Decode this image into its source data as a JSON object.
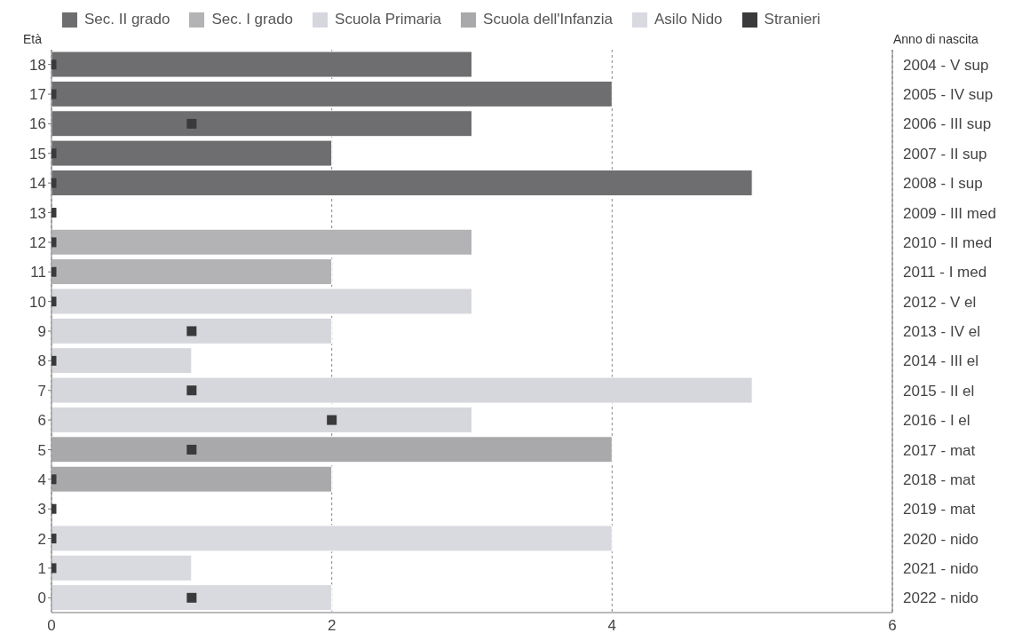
{
  "chart_data": {
    "type": "bar",
    "orientation": "horizontal",
    "stacked": true,
    "ylabel": "Età",
    "y2label": "Anno di nascita",
    "categories": [
      "18",
      "17",
      "16",
      "15",
      "14",
      "13",
      "12",
      "11",
      "10",
      "9",
      "8",
      "7",
      "6",
      "5",
      "4",
      "3",
      "2",
      "1",
      "0"
    ],
    "y2_categories": [
      "2004 - V sup",
      "2005 - IV sup",
      "2006 - III sup",
      "2007 - II sup",
      "2008 - I sup",
      "2009 - III med",
      "2010 - II med",
      "2011 - I med",
      "2012 - V el",
      "2013 - IV el",
      "2014 - III el",
      "2015 - II el",
      "2016 - I el",
      "2017 - mat",
      "2018 - mat",
      "2019 - mat",
      "2020 - nido",
      "2021 - nido",
      "2022 - nido"
    ],
    "series": [
      {
        "name": "Sec. II grado",
        "color": "#6e6e70",
        "values": [
          3,
          4,
          3,
          2,
          5,
          null,
          null,
          null,
          null,
          null,
          null,
          null,
          null,
          null,
          null,
          null,
          null,
          null,
          null
        ]
      },
      {
        "name": "Sec. I grado",
        "color": "#b3b3b6",
        "values": [
          null,
          null,
          null,
          null,
          null,
          null,
          3,
          2,
          null,
          null,
          null,
          null,
          null,
          null,
          null,
          null,
          null,
          null,
          null
        ]
      },
      {
        "name": "Scuola Primaria",
        "color": "#d6d7dc",
        "values": [
          null,
          null,
          null,
          null,
          null,
          null,
          null,
          null,
          3,
          2,
          1,
          5,
          3,
          null,
          null,
          null,
          null,
          null,
          null
        ]
      },
      {
        "name": "Scuola dell'Infanzia",
        "color": "#a9a9ac",
        "values": [
          null,
          null,
          null,
          null,
          null,
          null,
          null,
          null,
          null,
          null,
          null,
          null,
          null,
          4,
          2,
          null,
          null,
          null,
          null
        ]
      },
      {
        "name": "Asilo Nido",
        "color": "#d9dae0",
        "values": [
          null,
          null,
          null,
          null,
          null,
          null,
          null,
          null,
          null,
          null,
          null,
          null,
          null,
          null,
          null,
          null,
          4,
          1,
          2
        ]
      },
      {
        "name": "Stranieri",
        "type": "scatter",
        "marker": "square",
        "color": "#3a3a3c",
        "values": [
          0,
          0,
          1,
          0,
          0,
          0,
          0,
          0,
          0,
          1,
          0,
          1,
          2,
          1,
          0,
          0,
          0,
          0,
          1
        ]
      }
    ],
    "xlim": [
      0,
      6
    ],
    "xticks": [
      0,
      2,
      4,
      6
    ],
    "grid": "x",
    "legend": "top"
  }
}
